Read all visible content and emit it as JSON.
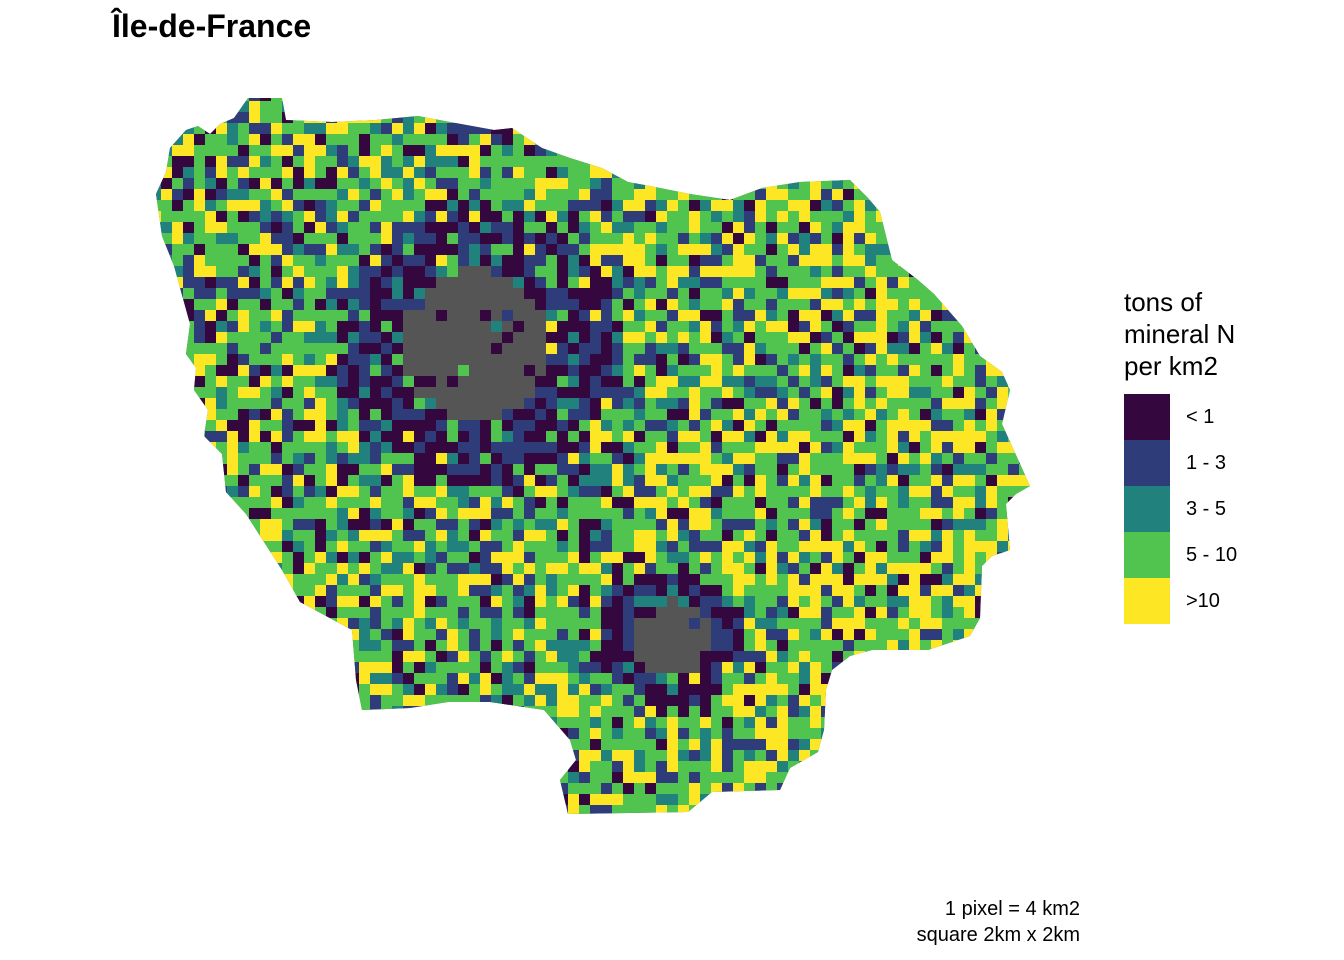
{
  "title": "Île-de-France",
  "legend": {
    "title_lines": [
      "tons of",
      "mineral N",
      "per km2"
    ],
    "classes": [
      {
        "label": "< 1",
        "color": "#35073f"
      },
      {
        "label": "1 - 3",
        "color": "#2e3d7a"
      },
      {
        "label": "3 - 5",
        "color": "#21817c"
      },
      {
        "label": "5 - 10",
        "color": "#50c44f"
      },
      {
        "label": ">10",
        "color": "#fde725"
      }
    ]
  },
  "no_data_color": "#555555",
  "caption": {
    "line1": "1 pixel = 4 km2",
    "line2": "square 2km x 2km"
  }
}
